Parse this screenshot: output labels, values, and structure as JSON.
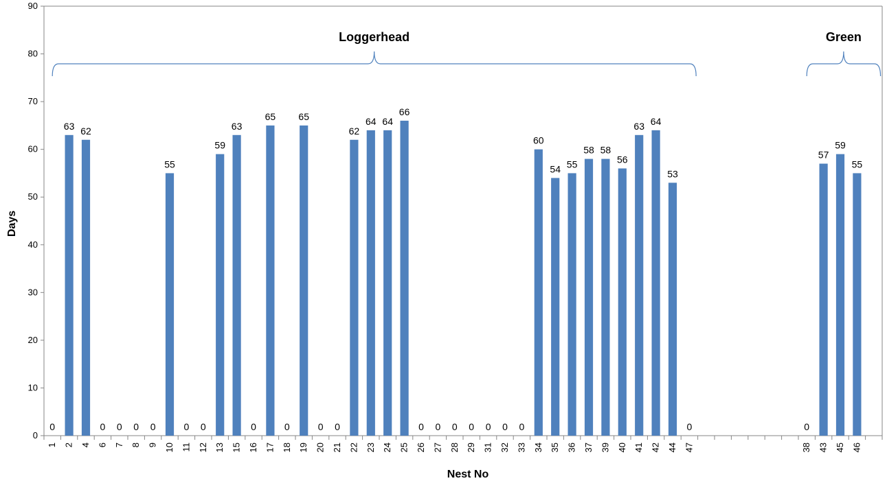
{
  "chart_data": {
    "type": "bar",
    "xlabel": "Nest No",
    "ylabel": "Days",
    "ylim": [
      0,
      90
    ],
    "yticks": [
      0,
      10,
      20,
      30,
      40,
      50,
      60,
      70,
      80,
      90
    ],
    "grid": false,
    "legend": "none",
    "bar_color": "#4F81BD",
    "categories": [
      "1",
      "2",
      "4",
      "6",
      "7",
      "8",
      "9",
      "10",
      "11",
      "12",
      "13",
      "15",
      "16",
      "17",
      "18",
      "19",
      "20",
      "21",
      "22",
      "23",
      "24",
      "25",
      "26",
      "27",
      "28",
      "29",
      "31",
      "32",
      "33",
      "34",
      "35",
      "36",
      "37",
      "39",
      "40",
      "41",
      "42",
      "44",
      "47",
      "",
      "",
      "",
      "",
      "",
      "",
      "38",
      "43",
      "45",
      "46",
      ""
    ],
    "values": [
      0,
      63,
      62,
      0,
      0,
      0,
      0,
      55,
      0,
      0,
      59,
      63,
      0,
      65,
      0,
      65,
      0,
      0,
      62,
      64,
      64,
      66,
      0,
      0,
      0,
      0,
      0,
      0,
      0,
      60,
      54,
      55,
      58,
      58,
      56,
      63,
      64,
      53,
      0,
      null,
      null,
      null,
      null,
      null,
      null,
      0,
      57,
      59,
      55,
      null
    ],
    "data_labels": [
      "0",
      "63",
      "62",
      "0",
      "0",
      "0",
      "0",
      "55",
      "0",
      "0",
      "59",
      "63",
      "0",
      "65",
      "0",
      "65",
      "0",
      "0",
      "62",
      "64",
      "64",
      "66",
      "0",
      "0",
      "0",
      "0",
      "0",
      "0",
      "0",
      "60",
      "54",
      "55",
      "58",
      "58",
      "56",
      "63",
      "64",
      "53",
      "0",
      "",
      "",
      "",
      "",
      "",
      "",
      "0",
      "57",
      "59",
      "55",
      ""
    ],
    "groups": [
      {
        "label": "Loggerhead",
        "from_index": 0,
        "to_index": 38
      },
      {
        "label": "Green",
        "from_index": 45,
        "to_index": 49
      }
    ]
  }
}
